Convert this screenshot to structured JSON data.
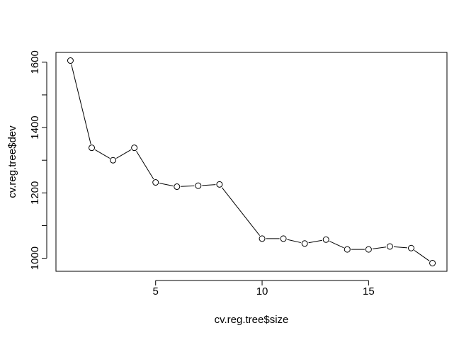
{
  "chart_data": {
    "type": "line",
    "title": "",
    "xlabel": "cv.reg.tree$size",
    "ylabel": "cv.reg.tree$dev",
    "x": [
      1,
      2,
      3,
      4,
      5,
      6,
      7,
      8,
      10,
      11,
      12,
      13,
      14,
      15,
      16,
      17,
      18
    ],
    "y": [
      1605,
      1338,
      1300,
      1338,
      1232,
      1219,
      1222,
      1226,
      1060,
      1060,
      1045,
      1057,
      1027,
      1027,
      1036,
      1031,
      985
    ],
    "xlim": [
      0.32,
      18.68
    ],
    "ylim": [
      960,
      1630
    ],
    "xticks": [
      5,
      10,
      15
    ],
    "xtick_labels": [
      "5",
      "10",
      "15"
    ],
    "yticks": [
      1000,
      1100,
      1200,
      1300,
      1400,
      1500,
      1600
    ],
    "ytick_labels": [
      "1000",
      "",
      "1200",
      "",
      "1400",
      "",
      "1600"
    ],
    "grid": false,
    "legend": "none",
    "marker": "open-circle",
    "line_color": "#000000",
    "point_fill": "#ffffff"
  }
}
